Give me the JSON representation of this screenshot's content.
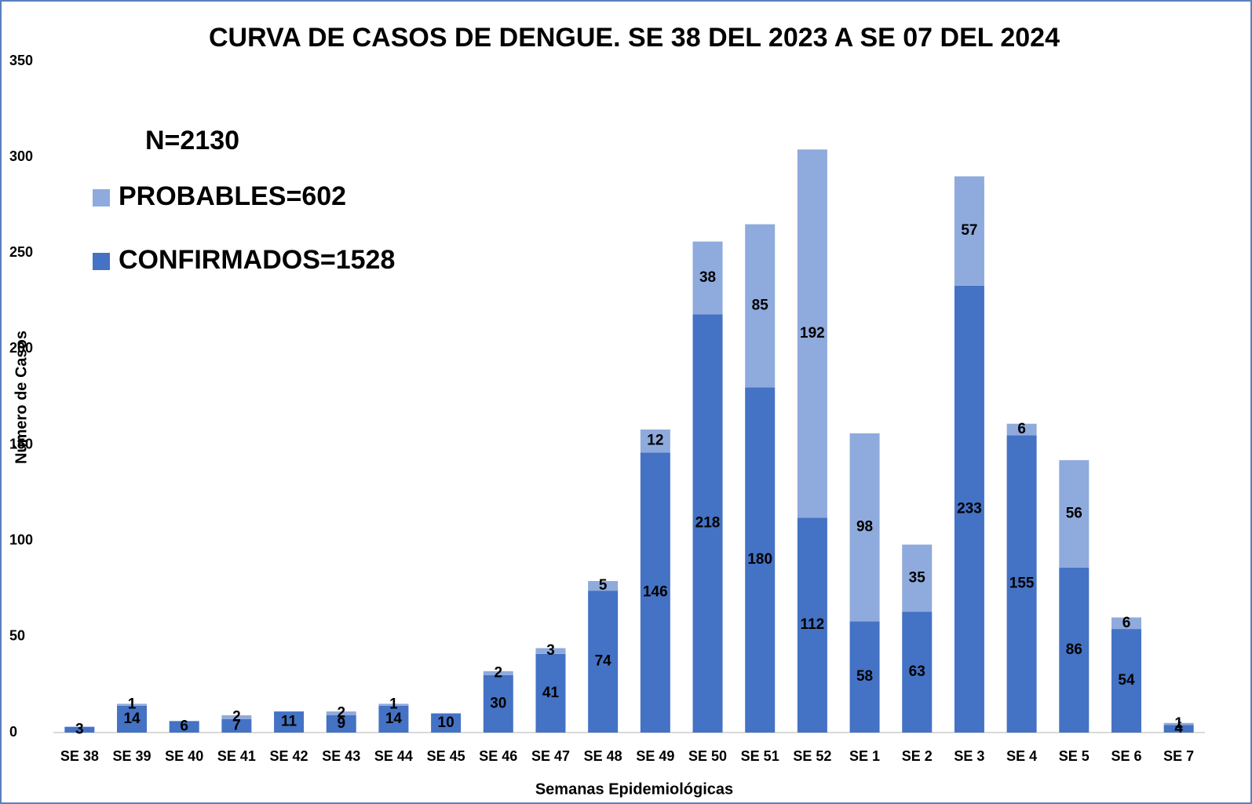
{
  "chart_data": {
    "type": "stacked_bar",
    "title": "CURVA DE CASOS DE DENGUE. SE 38 DEL 2023 A SE 07 DEL 2024",
    "annotation": "N=2130",
    "x_label": "Semanas Epidemiológicas",
    "y_label": "Número de Casos",
    "categories": [
      "SE 38",
      "SE 39",
      "SE 40",
      "SE 41",
      "SE 42",
      "SE 43",
      "SE 44",
      "SE 45",
      "SE 46",
      "SE 47",
      "SE 48",
      "SE 49",
      "SE 50",
      "SE 51",
      "SE 52",
      "SE 1",
      "SE 2",
      "SE 3",
      "SE 4",
      "SE 5",
      "SE 6",
      "SE 7"
    ],
    "series": [
      {
        "name": "CONFIRMADOS=1528",
        "color": "#4472c4",
        "values": [
          3,
          14,
          6,
          7,
          11,
          9,
          14,
          10,
          30,
          41,
          74,
          146,
          218,
          180,
          112,
          58,
          63,
          233,
          155,
          86,
          54,
          4
        ]
      },
      {
        "name": "PROBABLES=602",
        "color": "#8faadc",
        "values": [
          null,
          1,
          null,
          2,
          null,
          2,
          1,
          null,
          2,
          3,
          5,
          12,
          38,
          85,
          192,
          98,
          35,
          57,
          6,
          56,
          6,
          1
        ]
      }
    ],
    "ylim": [
      0,
      350
    ],
    "yticks": [
      0,
      50,
      100,
      150,
      200,
      250,
      300,
      350
    ],
    "grid": false
  }
}
